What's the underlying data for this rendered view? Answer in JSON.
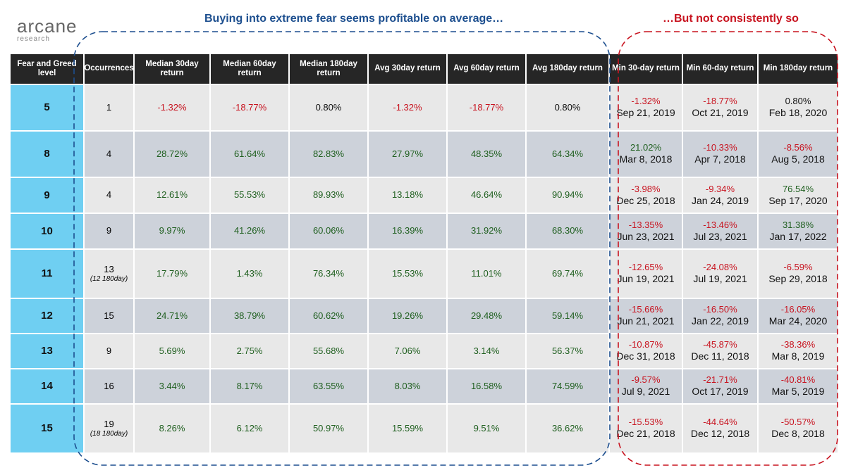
{
  "logo": {
    "name": "arcane",
    "sub": "research"
  },
  "annotations": {
    "left": "Buying into extreme fear seems profitable on average…",
    "right": "…But not consistently so"
  },
  "table": {
    "headers": [
      "Fear and Greed level",
      "Occurrences",
      "Median 30day return",
      "Median 60day return",
      "Median 180day return",
      "Avg 30day return",
      "Avg 60day return",
      "Avg 180day return",
      "Min 30-day return",
      "Min 60-day return",
      "Min 180day return"
    ],
    "rows": [
      {
        "level": "5",
        "occurrences": "1",
        "values": [
          "-1.32%",
          "-18.77%",
          "0.80%",
          "-1.32%",
          "-18.77%",
          "0.80%"
        ],
        "mins": [
          {
            "value": "-1.32%",
            "date": "Sep 21, 2019"
          },
          {
            "value": "-18.77%",
            "date": "Oct 21, 2019"
          },
          {
            "value": "0.80%",
            "date": "Feb 18, 2020"
          }
        ]
      },
      {
        "level": "8",
        "occurrences": "4",
        "values": [
          "28.72%",
          "61.64%",
          "82.83%",
          "27.97%",
          "48.35%",
          "64.34%"
        ],
        "mins": [
          {
            "value": "21.02%",
            "date": "Mar 8, 2018"
          },
          {
            "value": "-10.33%",
            "date": "Apr 7, 2018"
          },
          {
            "value": "-8.56%",
            "date": "Aug 5, 2018"
          }
        ]
      },
      {
        "level": "9",
        "occurrences": "4",
        "values": [
          "12.61%",
          "55.53%",
          "89.93%",
          "13.18%",
          "46.64%",
          "90.94%"
        ],
        "mins": [
          {
            "value": "-3.98%",
            "date": "Dec 25, 2018"
          },
          {
            "value": "-9.34%",
            "date": "Jan 24, 2019"
          },
          {
            "value": "76.54%",
            "date": "Sep 17, 2020"
          }
        ]
      },
      {
        "level": "10",
        "occurrences": "9",
        "values": [
          "9.97%",
          "41.26%",
          "60.06%",
          "16.39%",
          "31.92%",
          "68.30%"
        ],
        "mins": [
          {
            "value": "-13.35%",
            "date": "Jun 23, 2021"
          },
          {
            "value": "-13.46%",
            "date": "Jul 23, 2021"
          },
          {
            "value": "31.38%",
            "date": "Jan 17, 2022"
          }
        ]
      },
      {
        "level": "11",
        "occurrences": "13",
        "note": "(12 180day)",
        "values": [
          "17.79%",
          "1.43%",
          "76.34%",
          "15.53%",
          "11.01%",
          "69.74%"
        ],
        "mins": [
          {
            "value": "-12.65%",
            "date": "Jun 19, 2021"
          },
          {
            "value": "-24.08%",
            "date": "Jul 19, 2021"
          },
          {
            "value": "-6.59%",
            "date": "Sep 29, 2018"
          }
        ]
      },
      {
        "level": "12",
        "occurrences": "15",
        "values": [
          "24.71%",
          "38.79%",
          "60.62%",
          "19.26%",
          "29.48%",
          "59.14%"
        ],
        "mins": [
          {
            "value": "-15.66%",
            "date": "Jun 21, 2021"
          },
          {
            "value": "-16.50%",
            "date": "Jan 22, 2019"
          },
          {
            "value": "-16.05%",
            "date": "Mar 24, 2020"
          }
        ]
      },
      {
        "level": "13",
        "occurrences": "9",
        "values": [
          "5.69%",
          "2.75%",
          "55.68%",
          "7.06%",
          "3.14%",
          "56.37%"
        ],
        "mins": [
          {
            "value": "-10.87%",
            "date": "Dec 31, 2018"
          },
          {
            "value": "-45.87%",
            "date": "Dec 11, 2018"
          },
          {
            "value": "-38.36%",
            "date": "Mar 8, 2019"
          }
        ]
      },
      {
        "level": "14",
        "occurrences": "16",
        "values": [
          "3.44%",
          "8.17%",
          "63.55%",
          "8.03%",
          "16.58%",
          "74.59%"
        ],
        "mins": [
          {
            "value": "-9.57%",
            "date": "Jul 9, 2021"
          },
          {
            "value": "-21.71%",
            "date": "Oct 17, 2019"
          },
          {
            "value": "-40.81%",
            "date": "Mar 5, 2019"
          }
        ]
      },
      {
        "level": "15",
        "occurrences": "19",
        "note": "(18 180day)",
        "values": [
          "8.26%",
          "6.12%",
          "50.97%",
          "15.59%",
          "9.51%",
          "36.62%"
        ],
        "mins": [
          {
            "value": "-15.53%",
            "date": "Dec 21, 2018"
          },
          {
            "value": "-44.64%",
            "date": "Dec 12, 2018"
          },
          {
            "value": "-50.57%",
            "date": "Dec 8, 2018"
          }
        ]
      }
    ]
  }
}
